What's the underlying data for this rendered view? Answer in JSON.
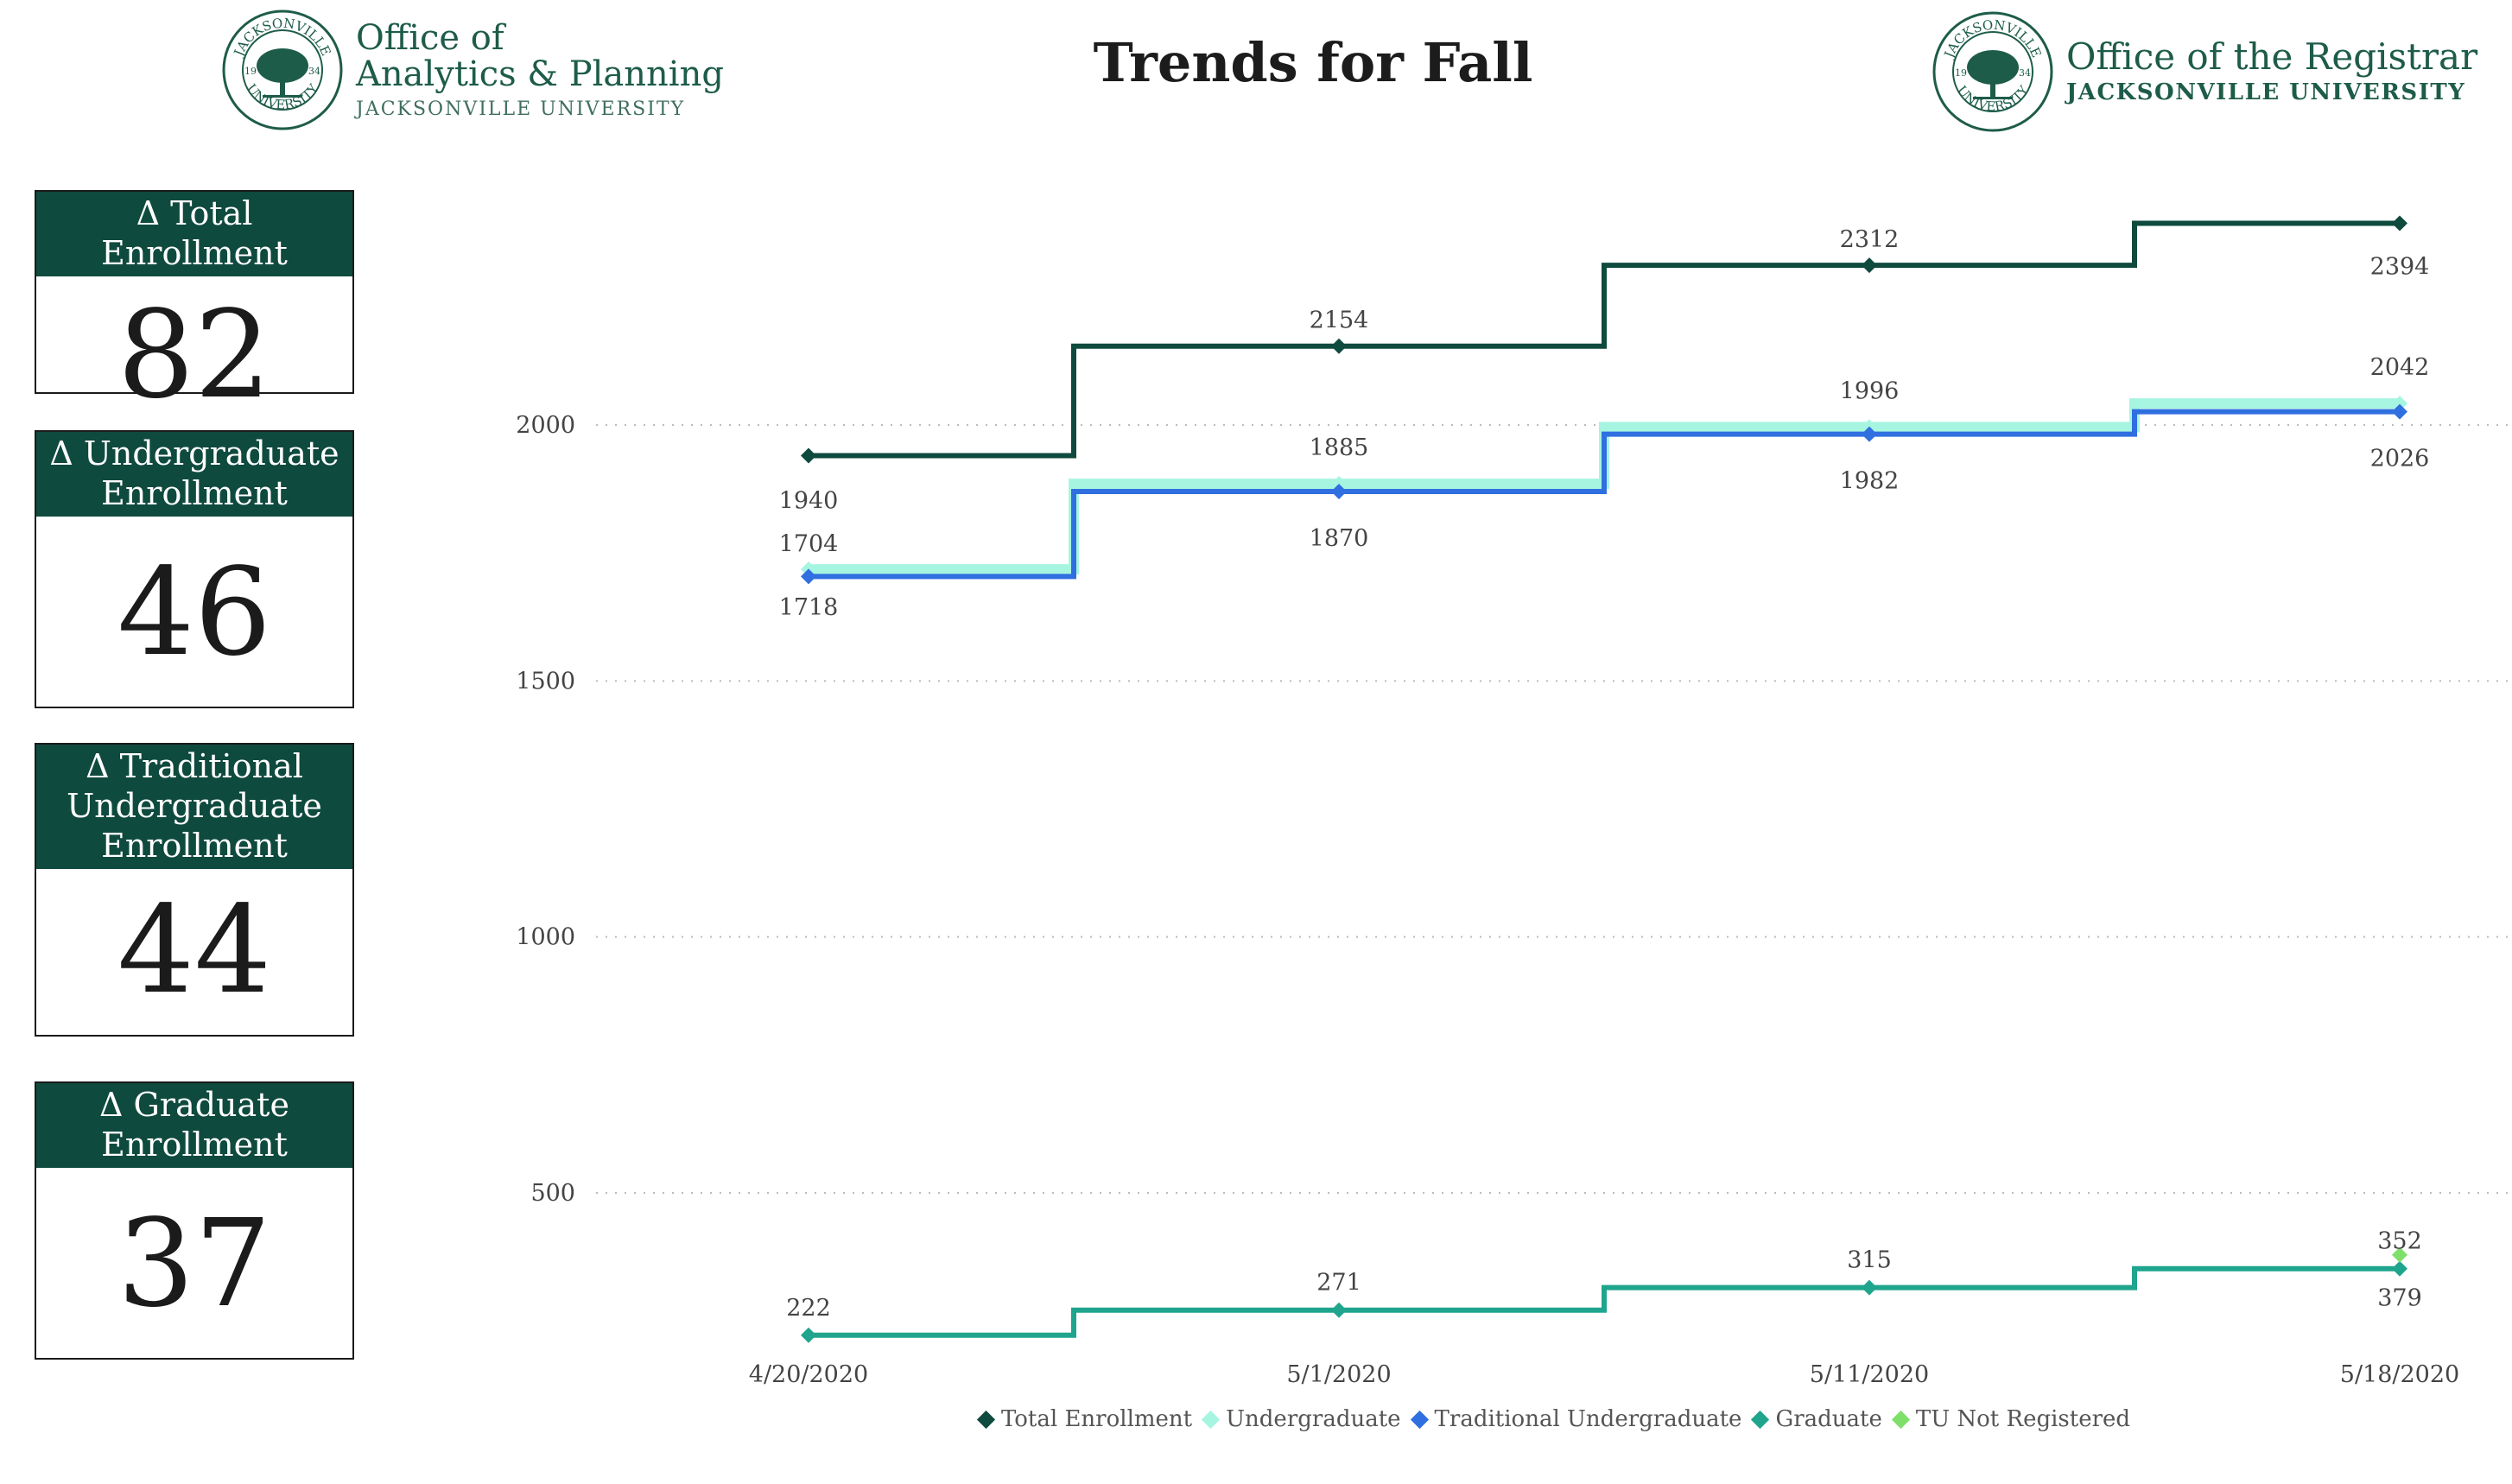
{
  "header": {
    "title": "Trends for Fall",
    "left_logo": {
      "line1": "Office of",
      "line2": "Analytics & Planning",
      "line3": "JACKSONVILLE UNIVERSITY",
      "seal_text": "JACKSONVILLE UNIVERSITY",
      "seal_left": "19",
      "seal_right": "34"
    },
    "right_logo": {
      "line1": "Office of the Registrar",
      "line2": "JACKSONVILLE UNIVERSITY",
      "seal_text": "JACKSONVILLE UNIVERSITY",
      "seal_left": "19",
      "seal_right": "34"
    }
  },
  "kpis": [
    {
      "label": "Δ Total Enrollment",
      "value": "82"
    },
    {
      "label": "Δ Undergraduate Enrollment",
      "value": "46"
    },
    {
      "label": "Δ Traditional Undergraduate Enrollment",
      "value": "44"
    },
    {
      "label": "Δ Graduate Enrollment",
      "value": "37"
    }
  ],
  "colors": {
    "brand": "#0f4a3e",
    "total": "#0f4a3e",
    "undergraduate": "#a6f5e1",
    "traditional": "#2f6fe0",
    "graduate": "#1fa58d",
    "tu_not_registered": "#7ee06a"
  },
  "chart_data": {
    "type": "line",
    "step": true,
    "x": [
      "4/20/2020",
      "5/1/2020",
      "5/11/2020",
      "5/18/2020"
    ],
    "yticks": [
      500,
      1000,
      1500,
      2000
    ],
    "grid": true,
    "legend_position": "bottom",
    "series": [
      {
        "name": "Total Enrollment",
        "values": [
          1940,
          2154,
          2312,
          2394
        ],
        "labels": [
          "1940",
          "2154",
          "2312",
          "2394"
        ]
      },
      {
        "name": "Undergraduate",
        "values": [
          1718,
          1885,
          1996,
          2042
        ],
        "labels": [
          "1718",
          "1885",
          "1996",
          "2042"
        ]
      },
      {
        "name": "Traditional Undergraduate",
        "values": [
          1704,
          1870,
          1982,
          2026
        ],
        "labels": [
          "1704",
          "1870",
          "1982",
          "2026"
        ]
      },
      {
        "name": "Graduate",
        "values": [
          222,
          271,
          315,
          352
        ],
        "labels": [
          "222",
          "271",
          "315",
          "352"
        ]
      },
      {
        "name": "TU Not Registered",
        "values": [
          null,
          null,
          null,
          379
        ],
        "labels": [
          "",
          "",
          "",
          "379"
        ]
      }
    ]
  }
}
